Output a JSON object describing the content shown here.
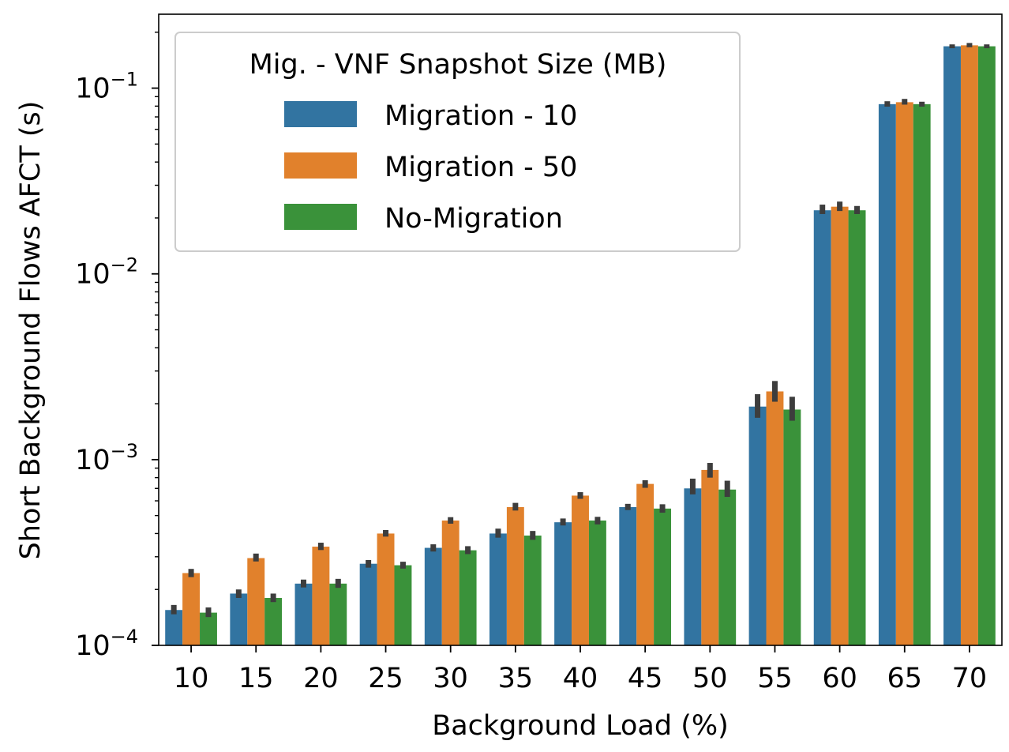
{
  "chart_data": {
    "type": "bar",
    "yscale": "log",
    "xlabel": "Background Load (%)",
    "ylabel": "Short Background Flows AFCT (s)",
    "ylim": [
      0.0001,
      0.25
    ],
    "categories": [
      "10",
      "15",
      "20",
      "25",
      "30",
      "35",
      "40",
      "45",
      "50",
      "55",
      "60",
      "65",
      "70"
    ],
    "yticks": [
      {
        "value": 0.0001,
        "base": "10",
        "exp": "−4"
      },
      {
        "value": 0.001,
        "base": "10",
        "exp": "−3"
      },
      {
        "value": 0.01,
        "base": "10",
        "exp": "−2"
      },
      {
        "value": 0.1,
        "base": "10",
        "exp": "−1"
      }
    ],
    "legend": {
      "title": "Mig. - VNF Snapshot Size (MB)",
      "placement": "top-left"
    },
    "series": [
      {
        "name": "Migration - 10",
        "color": "#3274a1",
        "values": [
          0.000155,
          0.00019,
          0.000215,
          0.000275,
          0.000335,
          0.0004,
          0.00046,
          0.000555,
          0.0007,
          0.00193,
          0.022,
          0.082,
          0.168
        ],
        "err_low": [
          0.000147,
          0.00018,
          0.000205,
          0.000262,
          0.00032,
          0.00038,
          0.000442,
          0.000535,
          0.00065,
          0.00168,
          0.021,
          0.0795,
          0.164
        ],
        "err_high": [
          0.000165,
          0.0002,
          0.000226,
          0.000288,
          0.00035,
          0.000425,
          0.000482,
          0.000578,
          0.00079,
          0.00225,
          0.0236,
          0.085,
          0.172
        ]
      },
      {
        "name": "Migration - 50",
        "color": "#e1812c",
        "values": [
          0.000245,
          0.000295,
          0.00034,
          0.0004,
          0.00047,
          0.000555,
          0.00064,
          0.00074,
          0.00088,
          0.00233,
          0.023,
          0.084,
          0.17
        ],
        "err_low": [
          0.000233,
          0.000283,
          0.000326,
          0.000385,
          0.000452,
          0.000532,
          0.000615,
          0.000705,
          0.0008,
          0.00205,
          0.0218,
          0.0815,
          0.166
        ],
        "err_high": [
          0.000258,
          0.000312,
          0.000357,
          0.000418,
          0.00049,
          0.000585,
          0.000668,
          0.000775,
          0.00096,
          0.00265,
          0.0245,
          0.0875,
          0.175
        ]
      },
      {
        "name": "No-Migration",
        "color": "#3a923a",
        "values": [
          0.00015,
          0.00018,
          0.000215,
          0.00027,
          0.000325,
          0.00039,
          0.00047,
          0.000545,
          0.00069,
          0.00186,
          0.022,
          0.082,
          0.168
        ],
        "err_low": [
          0.000142,
          0.000171,
          0.000204,
          0.000259,
          0.00031,
          0.00037,
          0.000448,
          0.000518,
          0.00063,
          0.00162,
          0.021,
          0.0795,
          0.164
        ],
        "err_high": [
          0.00016,
          0.00019,
          0.000228,
          0.000282,
          0.000342,
          0.000413,
          0.000492,
          0.000575,
          0.00077,
          0.00218,
          0.0232,
          0.0845,
          0.172
        ]
      }
    ]
  }
}
